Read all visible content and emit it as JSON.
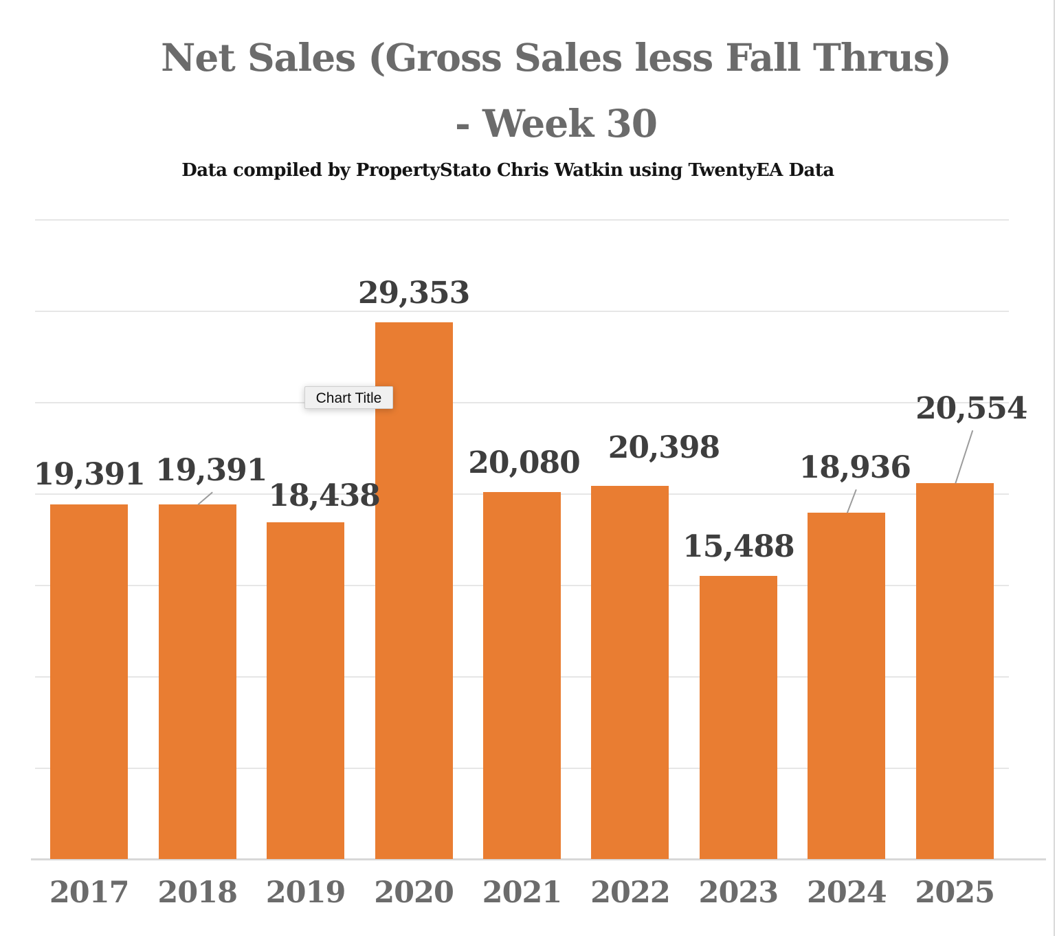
{
  "header": {
    "title_line1": "Net Sales (Gross Sales less Fall Thrus)",
    "title_line2": "- Week 30",
    "subtitle": "Data compiled by PropertyStato Chris Watkin using TwentyEA Data"
  },
  "tooltip": {
    "label": "Chart Title"
  },
  "colors": {
    "bar": "#E97D32",
    "title_text": "#6B6B6B",
    "subtitle_text": "#141414",
    "data_label": "#3E3E3E",
    "axis_label": "#6B6B6B",
    "gridline": "#E6E6E6",
    "axis_line": "#D8D8D8",
    "leader_line": "#9B9B9B",
    "tooltip_bg": "#F0F0F0",
    "tooltip_border": "#CFCFCF",
    "background": "#FFFFFF"
  },
  "chart_data": {
    "type": "bar",
    "title": "Net Sales (Gross Sales less Fall Thrus) - Week 30",
    "subtitle": "Data compiled by PropertyStato Chris Watkin using TwentyEA Data",
    "categories": [
      "2017",
      "2018",
      "2019",
      "2020",
      "2021",
      "2022",
      "2023",
      "2024",
      "2025"
    ],
    "values": [
      19391,
      19391,
      18438,
      29353,
      20080,
      20398,
      15488,
      18936,
      20554
    ],
    "value_labels": [
      "19,391",
      "19,391",
      "18,438",
      "29,353",
      "20,080",
      "20,398",
      "15,488",
      "18,936",
      "20,554"
    ],
    "xlabel": "",
    "ylabel": "",
    "ylim": [
      0,
      35000
    ],
    "grid_step": 5000,
    "grid": true,
    "y_tick_labels_visible": false,
    "legend": false,
    "bar_color": "#E97D32",
    "label_layout": [
      {
        "dx": 0,
        "gap": 17,
        "leader": false
      },
      {
        "dx": 20,
        "gap": 23,
        "leader": true
      },
      {
        "dx": 27,
        "gap": 12,
        "leader": false
      },
      {
        "dx": 0,
        "gap": 16,
        "leader": false
      },
      {
        "dx": 3,
        "gap": 16,
        "leader": false
      },
      {
        "dx": 49,
        "gap": 30,
        "leader": false
      },
      {
        "dx": 0,
        "gap": 16,
        "leader": false
      },
      {
        "dx": 12,
        "gap": 39,
        "leader": true
      },
      {
        "dx": 24,
        "gap": 82,
        "leader": true
      }
    ]
  }
}
